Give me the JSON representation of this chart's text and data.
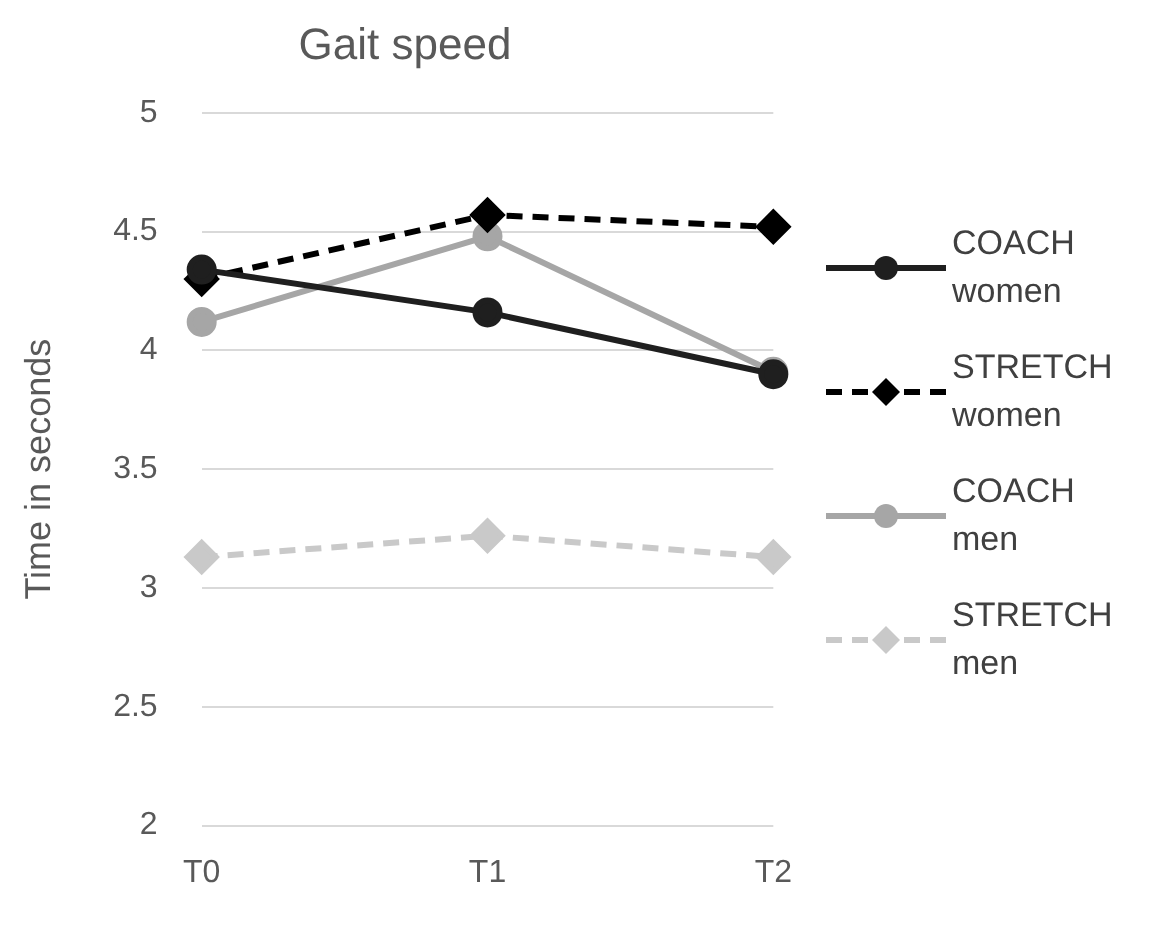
{
  "chart_data": {
    "type": "line",
    "title": "Gait speed",
    "ylabel": "Time in seconds",
    "categories": [
      "T0",
      "T1",
      "T2"
    ],
    "series": [
      {
        "name": "COACH women",
        "color": "#1f1f1f",
        "values": [
          4.34,
          4.16,
          3.9
        ],
        "marker": "circle",
        "line_style": "solid"
      },
      {
        "name": "STRETCH women",
        "color": "#000000",
        "values": [
          4.3,
          4.57,
          4.52
        ],
        "marker": "diamond",
        "line_style": "dashed"
      },
      {
        "name": "COACH men",
        "color": "#a6a6a6",
        "values": [
          4.12,
          4.48,
          3.91
        ],
        "marker": "circle",
        "line_style": "solid"
      },
      {
        "name": "STRETCH men",
        "color": "#c9c9c9",
        "values": [
          3.13,
          3.22,
          3.13
        ],
        "marker": "diamond",
        "line_style": "dashed"
      }
    ],
    "ylim": [
      2,
      5
    ],
    "yticks": [
      2,
      2.5,
      3,
      3.5,
      4,
      4.5,
      5
    ],
    "grid": "y",
    "legend": "right"
  }
}
